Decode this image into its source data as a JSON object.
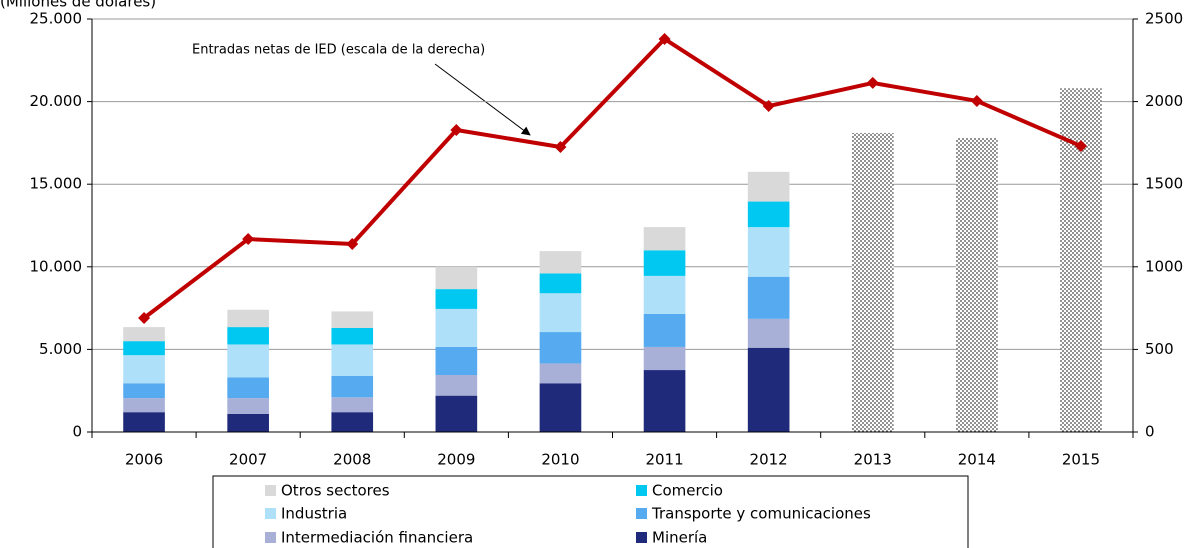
{
  "chart_data": {
    "type": "bar",
    "subtitle": "(Millones de dólares)",
    "annotation": "Entradas netas de IED (escala de la derecha)",
    "categories": [
      "2006",
      "2007",
      "2008",
      "2009",
      "2010",
      "2011",
      "2012",
      "2013",
      "2014",
      "2015"
    ],
    "stacked": true,
    "series": [
      {
        "name": "Otros sectores",
        "color": "#d9d9d9",
        "values": [
          850,
          1050,
          1000,
          1350,
          1350,
          1400,
          1800,
          null,
          null,
          null
        ]
      },
      {
        "name": "Comercio",
        "color": "#00c8f0",
        "values": [
          850,
          1050,
          1000,
          1200,
          1200,
          1550,
          1550,
          null,
          null,
          null
        ]
      },
      {
        "name": "Industria",
        "color": "#aee0fa",
        "values": [
          1700,
          2000,
          1900,
          2300,
          2350,
          2300,
          3000,
          null,
          null,
          null
        ]
      },
      {
        "name": "Transporte y comunicaciones",
        "color": "#55aaf0",
        "values": [
          900,
          1250,
          1300,
          1700,
          1900,
          2000,
          2550,
          null,
          null,
          null
        ]
      },
      {
        "name": "Intermediación financiera",
        "color": "#a8b0d8",
        "values": [
          850,
          950,
          900,
          1250,
          1200,
          1400,
          1750,
          null,
          null,
          null
        ]
      },
      {
        "name": "Minería",
        "color": "#1f2a7a",
        "values": [
          1200,
          1100,
          1200,
          2200,
          2950,
          3750,
          5100,
          null,
          null,
          null
        ]
      }
    ],
    "estimate_bars": {
      "color": "#444444",
      "values": [
        null,
        null,
        null,
        null,
        null,
        null,
        null,
        18100,
        17800,
        20800
      ]
    },
    "line_series": {
      "color": "#c00000",
      "axis": "y2",
      "values": [
        690,
        1168,
        1138,
        1828,
        1725,
        2379,
        1973,
        2113,
        2004,
        1731
      ]
    },
    "ylim": [
      0,
      25000
    ],
    "yticks": [
      0,
      {
        "value": 5000,
        "label": "5.000"
      },
      {
        "value": 10000,
        "label": "10.000"
      },
      {
        "value": 15000,
        "label": "15.000"
      },
      {
        "value": 20000,
        "label": "20.000"
      },
      {
        "value": 25000,
        "label": "25.000"
      }
    ],
    "y2lim": [
      0,
      2500
    ],
    "y2ticks": [
      0,
      500,
      1000,
      1500,
      2000,
      2500
    ],
    "grid": true
  }
}
